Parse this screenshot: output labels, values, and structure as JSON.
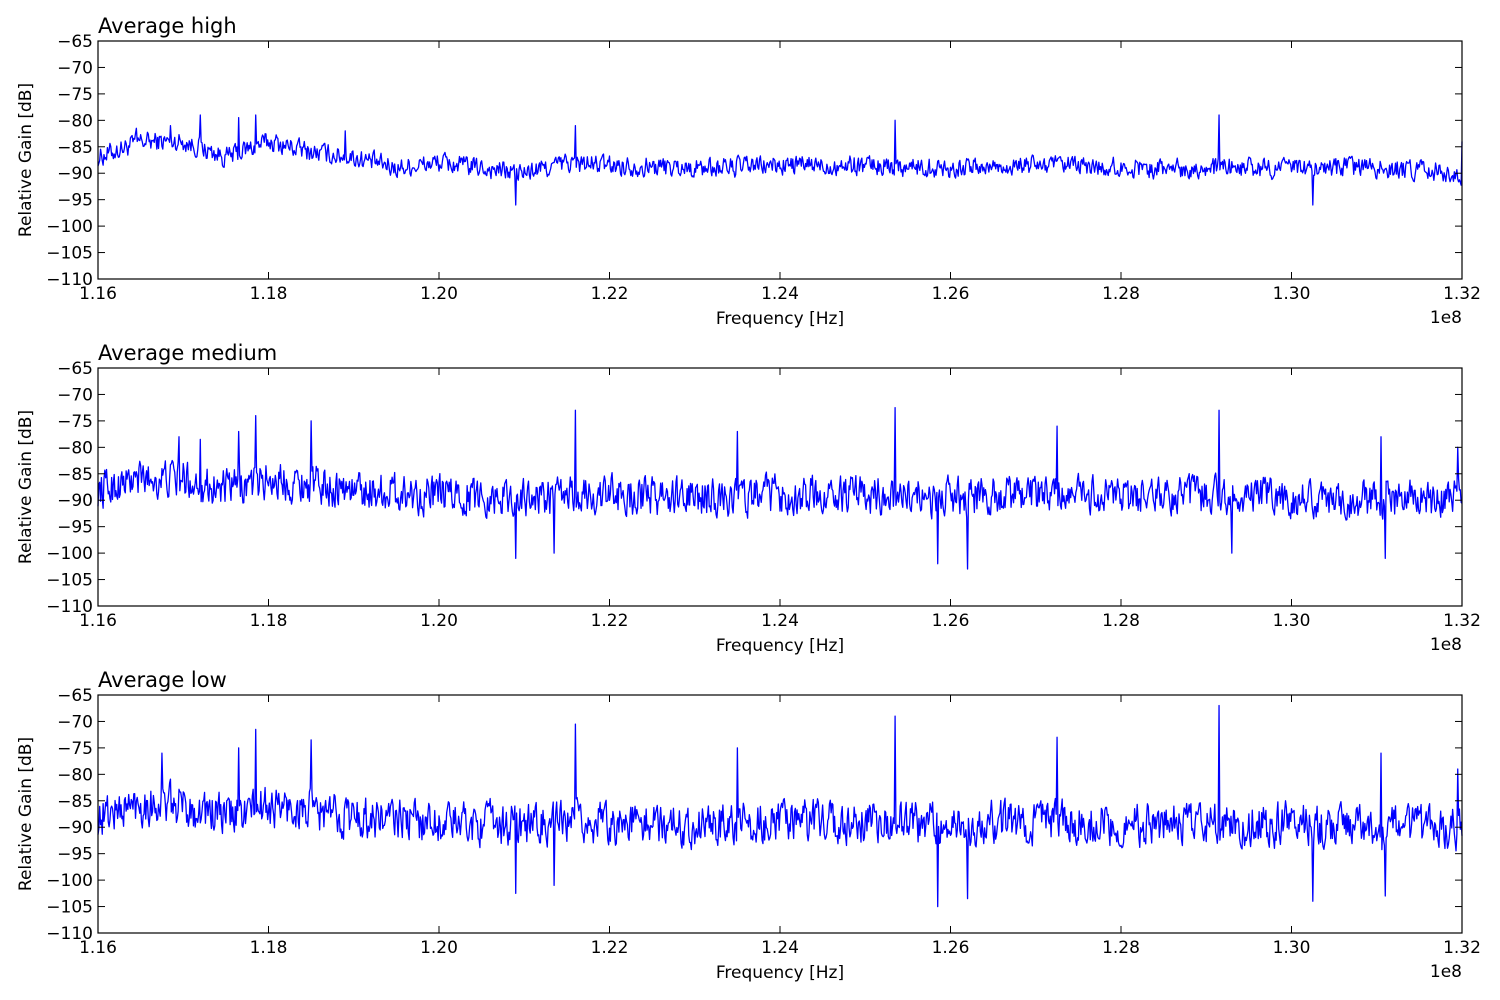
{
  "figure": {
    "background": "#ffffff",
    "line_color": "#0000ff"
  },
  "chart_data": [
    {
      "type": "line",
      "title": "Average high",
      "xlabel": "Frequency [Hz]",
      "ylabel": "Relative Gain [dB]",
      "xlim": [
        116000000,
        132000000
      ],
      "ylim": [
        -110,
        -65
      ],
      "x_offset_label": "1e8",
      "x_ticks": [
        116000000.0,
        118000000.0,
        120000000.0,
        122000000.0,
        124000000.0,
        126000000.0,
        128000000.0,
        130000000.0,
        132000000.0
      ],
      "x_tick_labels": [
        "1.16",
        "1.18",
        "1.20",
        "1.22",
        "1.24",
        "1.26",
        "1.28",
        "1.30",
        "1.32"
      ],
      "y_ticks": [
        -65,
        -70,
        -75,
        -80,
        -85,
        -90,
        -95,
        -100,
        -105,
        -110
      ],
      "y_tick_labels": [
        "−65",
        "−70",
        "−75",
        "−80",
        "−85",
        "−90",
        "−95",
        "−100",
        "−105",
        "−110"
      ],
      "grid": false,
      "legend": "none",
      "series": [
        {
          "color": "#0000ff",
          "baseline": [
            [
              116000000.0,
              -87
            ],
            [
              116500000.0,
              -84
            ],
            [
              117000000.0,
              -84
            ],
            [
              117500000.0,
              -87
            ],
            [
              118000000.0,
              -84
            ],
            [
              118500000.0,
              -86
            ],
            [
              119000000.0,
              -87
            ],
            [
              119500000.0,
              -89
            ],
            [
              120000000.0,
              -88
            ],
            [
              120500000.0,
              -89
            ],
            [
              121000000.0,
              -90
            ],
            [
              121500000.0,
              -88
            ],
            [
              122000000.0,
              -88.5
            ],
            [
              123000000.0,
              -89
            ],
            [
              124000000.0,
              -88.5
            ],
            [
              125000000.0,
              -88.5
            ],
            [
              126000000.0,
              -89
            ],
            [
              127000000.0,
              -88.5
            ],
            [
              128000000.0,
              -89
            ],
            [
              129000000.0,
              -89
            ],
            [
              130000000.0,
              -89
            ],
            [
              131000000.0,
              -89
            ],
            [
              132000000.0,
              -90
            ]
          ],
          "amplitude": 2.6,
          "spikes": [
            [
              116450000.0,
              -81.5
            ],
            [
              116850000.0,
              -81
            ],
            [
              117200000.0,
              -79
            ],
            [
              117650000.0,
              -79.5
            ],
            [
              117850000.0,
              -79
            ],
            [
              118900000.0,
              -82
            ],
            [
              120900000.0,
              -96
            ],
            [
              121600000.0,
              -81
            ],
            [
              125350000.0,
              -80
            ],
            [
              129150000.0,
              -79
            ],
            [
              130250000.0,
              -96
            ],
            [
              132000000.0,
              -84
            ]
          ]
        }
      ]
    },
    {
      "type": "line",
      "title": "Average medium",
      "xlabel": "Frequency [Hz]",
      "ylabel": "Relative Gain [dB]",
      "xlim": [
        116000000,
        132000000
      ],
      "ylim": [
        -110,
        -65
      ],
      "x_offset_label": "1e8",
      "x_ticks": [
        116000000.0,
        118000000.0,
        120000000.0,
        122000000.0,
        124000000.0,
        126000000.0,
        128000000.0,
        130000000.0,
        132000000.0
      ],
      "x_tick_labels": [
        "1.16",
        "1.18",
        "1.20",
        "1.22",
        "1.24",
        "1.26",
        "1.28",
        "1.30",
        "1.32"
      ],
      "y_ticks": [
        -65,
        -70,
        -75,
        -80,
        -85,
        -90,
        -95,
        -100,
        -105,
        -110
      ],
      "y_tick_labels": [
        "−65",
        "−70",
        "−75",
        "−80",
        "−85",
        "−90",
        "−95",
        "−100",
        "−105",
        "−110"
      ],
      "grid": false,
      "legend": "none",
      "series": [
        {
          "color": "#0000ff",
          "baseline": [
            [
              116000000.0,
              -88
            ],
            [
              116500000.0,
              -86
            ],
            [
              117000000.0,
              -86
            ],
            [
              117500000.0,
              -88
            ],
            [
              118000000.0,
              -86
            ],
            [
              118500000.0,
              -87
            ],
            [
              119000000.0,
              -88
            ],
            [
              120000000.0,
              -89
            ],
            [
              121000000.0,
              -89.5
            ],
            [
              122000000.0,
              -89
            ],
            [
              123000000.0,
              -89.5
            ],
            [
              124000000.0,
              -89
            ],
            [
              125000000.0,
              -89
            ],
            [
              126000000.0,
              -89.5
            ],
            [
              127000000.0,
              -89
            ],
            [
              128000000.0,
              -89.5
            ],
            [
              129000000.0,
              -89.5
            ],
            [
              130000000.0,
              -89.5
            ],
            [
              131000000.0,
              -90
            ],
            [
              132000000.0,
              -90
            ]
          ],
          "amplitude": 5,
          "spikes": [
            [
              116950000.0,
              -78
            ],
            [
              117200000.0,
              -78.5
            ],
            [
              117650000.0,
              -77
            ],
            [
              117850000.0,
              -74
            ],
            [
              118500000.0,
              -75
            ],
            [
              120900000.0,
              -101
            ],
            [
              121600000.0,
              -73
            ],
            [
              121350000.0,
              -100
            ],
            [
              123500000.0,
              -77
            ],
            [
              125350000.0,
              -72.5
            ],
            [
              125850000.0,
              -102
            ],
            [
              126200000.0,
              -103
            ],
            [
              127250000.0,
              -76
            ],
            [
              129150000.0,
              -73
            ],
            [
              129300000.0,
              -100
            ],
            [
              131050000.0,
              -78
            ],
            [
              131100000.0,
              -101
            ],
            [
              131950000.0,
              -80
            ]
          ]
        }
      ]
    },
    {
      "type": "line",
      "title": "Average low",
      "xlabel": "Frequency [Hz]",
      "ylabel": "Relative Gain [dB]",
      "xlim": [
        116000000,
        132000000
      ],
      "ylim": [
        -110,
        -65
      ],
      "x_offset_label": "1e8",
      "x_ticks": [
        116000000.0,
        118000000.0,
        120000000.0,
        122000000.0,
        124000000.0,
        126000000.0,
        128000000.0,
        130000000.0,
        132000000.0
      ],
      "x_tick_labels": [
        "1.16",
        "1.18",
        "1.20",
        "1.22",
        "1.24",
        "1.26",
        "1.28",
        "1.30",
        "1.32"
      ],
      "y_ticks": [
        -65,
        -70,
        -75,
        -80,
        -85,
        -90,
        -95,
        -100,
        -105,
        -110
      ],
      "y_tick_labels": [
        "−65",
        "−70",
        "−75",
        "−80",
        "−85",
        "−90",
        "−95",
        "−100",
        "−105",
        "−110"
      ],
      "grid": false,
      "legend": "none",
      "series": [
        {
          "color": "#0000ff",
          "baseline": [
            [
              116000000.0,
              -88
            ],
            [
              116500000.0,
              -85.5
            ],
            [
              117000000.0,
              -86
            ],
            [
              117500000.0,
              -88
            ],
            [
              118000000.0,
              -86
            ],
            [
              118500000.0,
              -87
            ],
            [
              119000000.0,
              -88
            ],
            [
              120000000.0,
              -89
            ],
            [
              121000000.0,
              -89.5
            ],
            [
              122000000.0,
              -89
            ],
            [
              123000000.0,
              -89.5
            ],
            [
              124000000.0,
              -89
            ],
            [
              125000000.0,
              -89
            ],
            [
              126000000.0,
              -89.5
            ],
            [
              127000000.0,
              -89
            ],
            [
              128000000.0,
              -89.5
            ],
            [
              129000000.0,
              -89.5
            ],
            [
              130000000.0,
              -89.5
            ],
            [
              131000000.0,
              -90
            ],
            [
              132000000.0,
              -90
            ]
          ],
          "amplitude": 5.5,
          "spikes": [
            [
              116750000.0,
              -76
            ],
            [
              117650000.0,
              -75
            ],
            [
              117850000.0,
              -71.5
            ],
            [
              118500000.0,
              -73.5
            ],
            [
              120900000.0,
              -102.5
            ],
            [
              121600000.0,
              -70.5
            ],
            [
              121350000.0,
              -101
            ],
            [
              123500000.0,
              -75
            ],
            [
              125350000.0,
              -69
            ],
            [
              125850000.0,
              -105
            ],
            [
              126200000.0,
              -103.5
            ],
            [
              127250000.0,
              -73
            ],
            [
              129150000.0,
              -67
            ],
            [
              130250000.0,
              -104
            ],
            [
              131050000.0,
              -76
            ],
            [
              131100000.0,
              -103
            ],
            [
              131950000.0,
              -79
            ]
          ]
        }
      ]
    }
  ]
}
